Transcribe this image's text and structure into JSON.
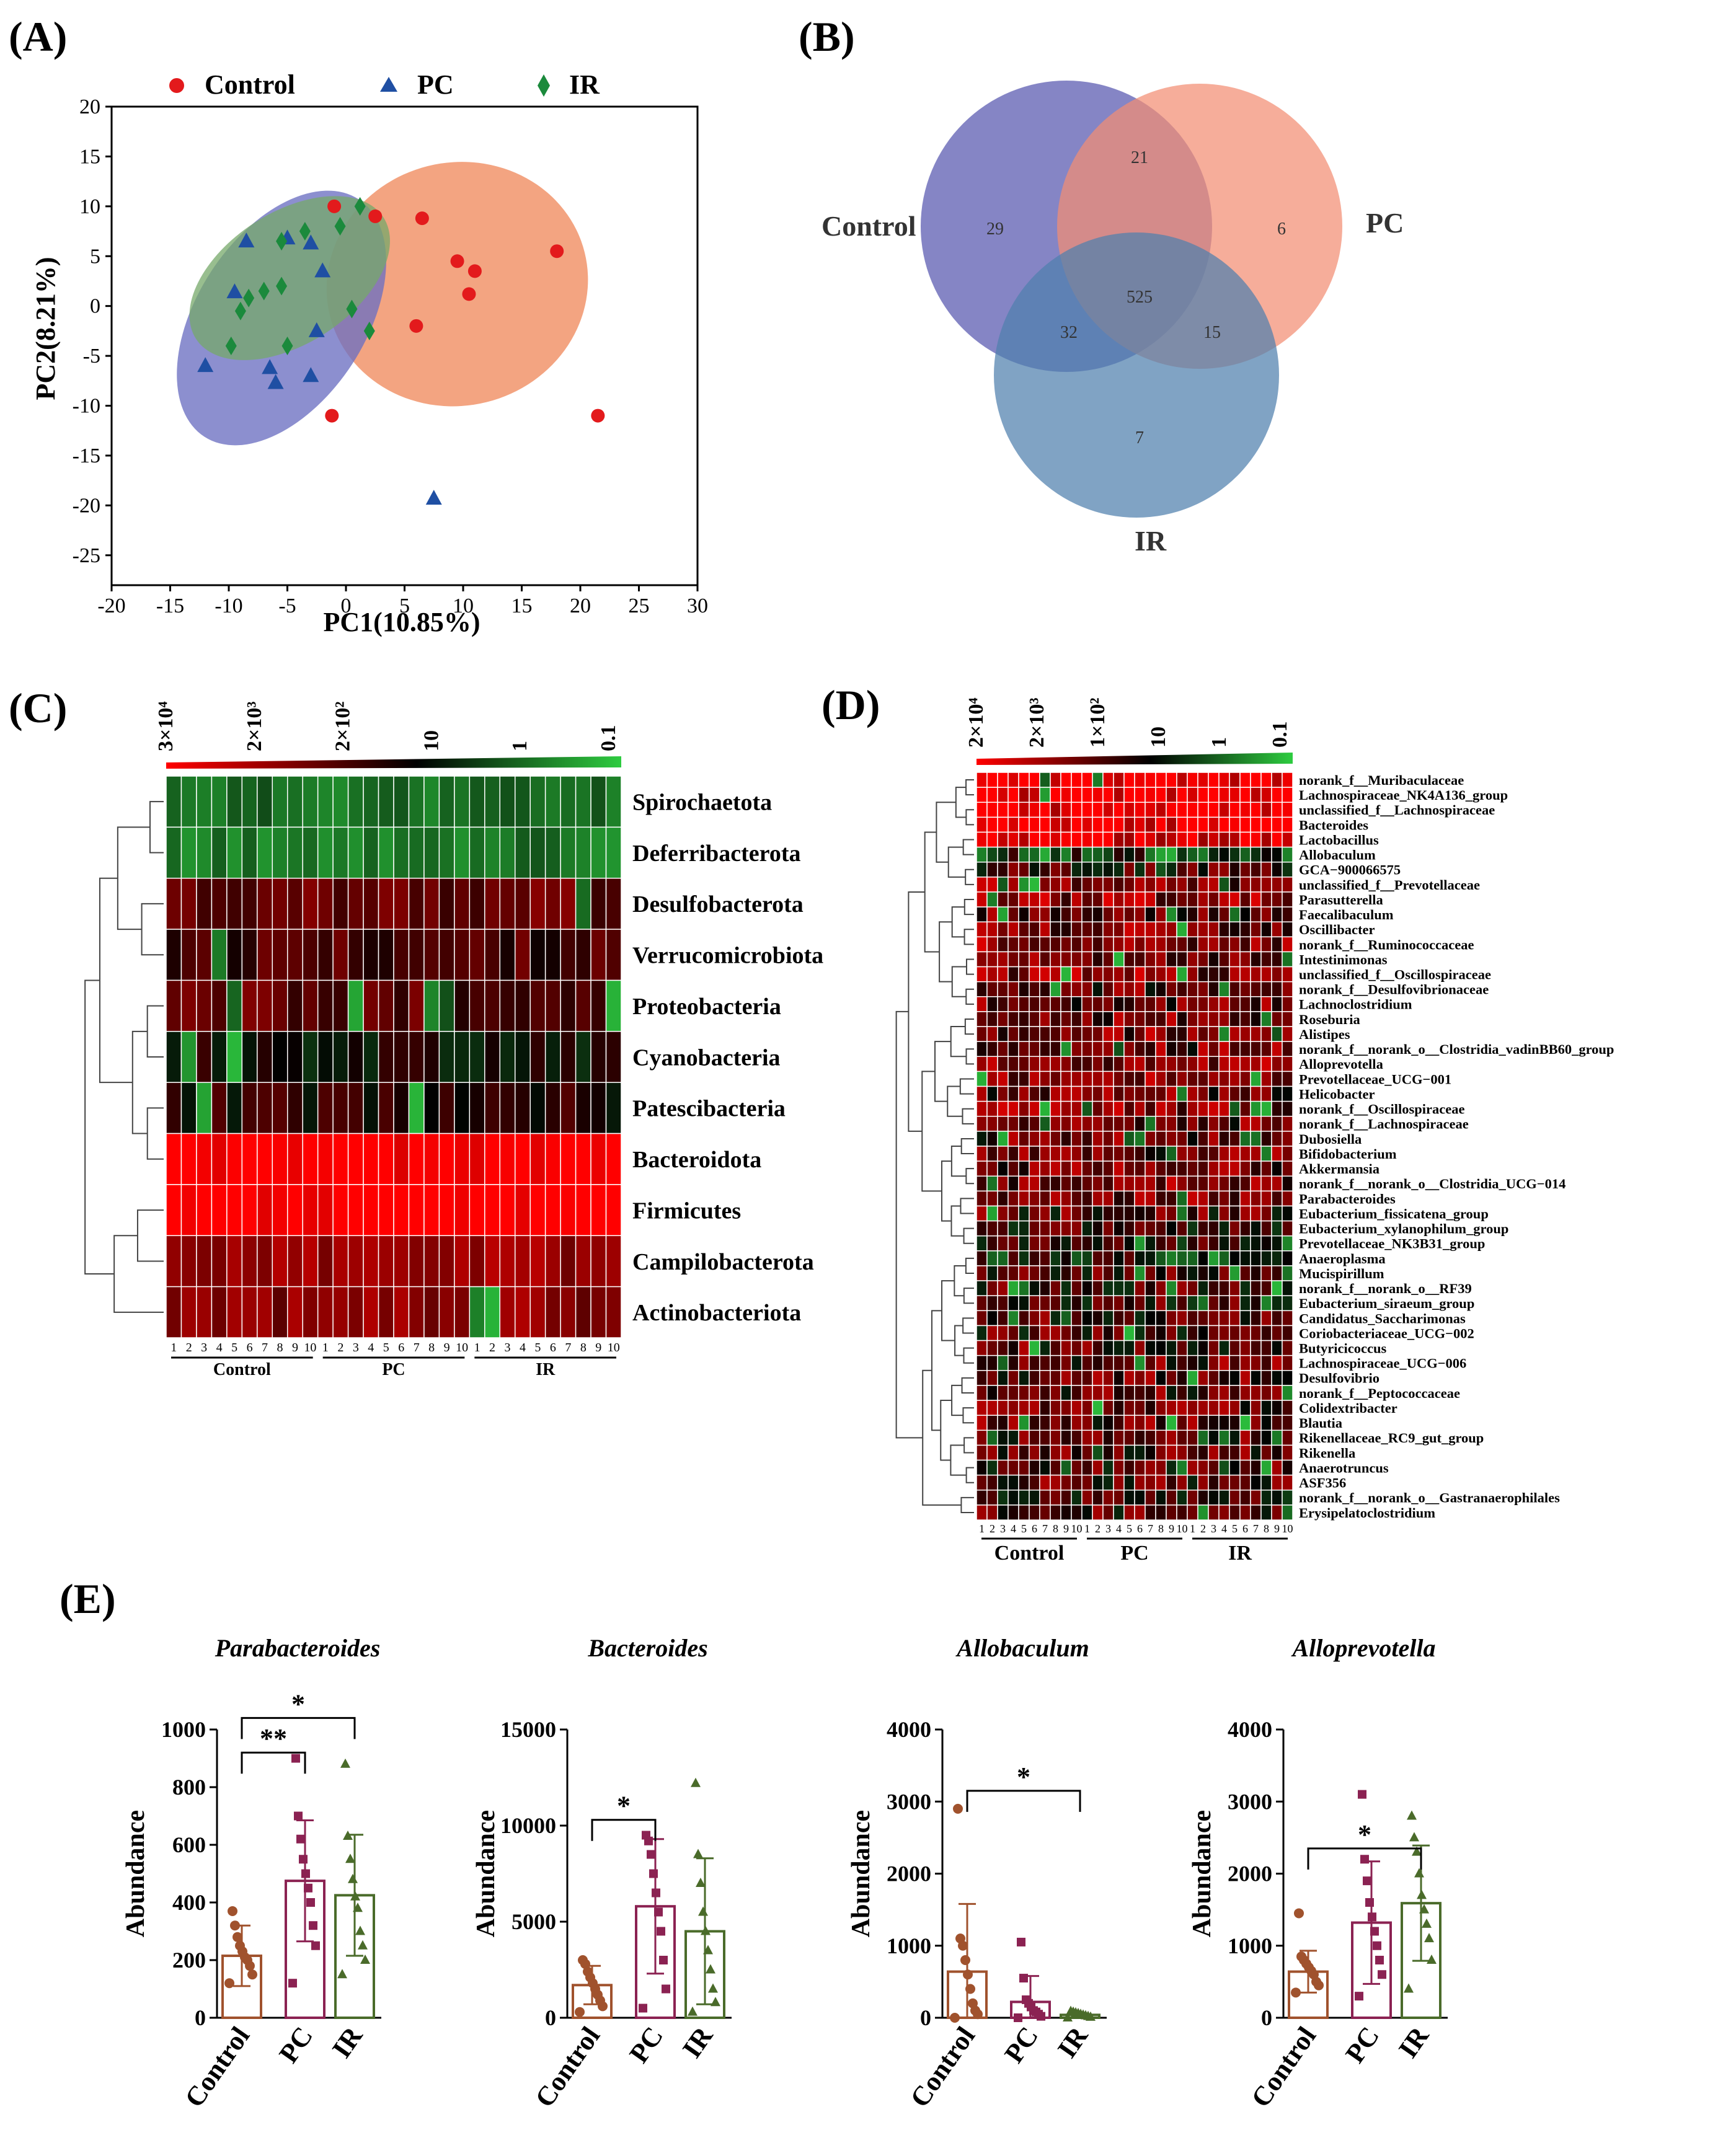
{
  "panels": {
    "A": {
      "label": "(A)"
    },
    "B": {
      "label": "(B)"
    },
    "C": {
      "label": "(C)"
    },
    "D": {
      "label": "(D)"
    },
    "E": {
      "label": "(E)"
    }
  },
  "colors": {
    "control": "#e31a1c",
    "pc": "#1f4fa3",
    "ir": "#1b8a3c",
    "ell_control": "#f08a5d",
    "ell_pc": "#6b6fc2",
    "ell_ir": "#76a86a",
    "venn_control": "#6a6ab8",
    "venn_pc": "#f28e73",
    "venn_ir": "#4f7fad",
    "bar_control": "#a0522d",
    "bar_pc": "#8b2252",
    "bar_ir": "#4a6b2a",
    "heat_high": "#ff0000",
    "heat_mid": "#000000",
    "heat_low": "#2ecc40"
  },
  "chart_data": [
    {
      "panel": "A",
      "type": "scatter",
      "xlabel": "PC1(10.85%)",
      "ylabel": "PC2(8.21%)",
      "xlim": [
        -20,
        30
      ],
      "ylim": [
        -28,
        20
      ],
      "xticks": [
        -20,
        -15,
        -10,
        -5,
        0,
        5,
        10,
        15,
        20,
        25,
        30
      ],
      "yticks": [
        20,
        15,
        10,
        5,
        0,
        -5,
        -10,
        -15,
        -20,
        -25
      ],
      "xtick_labels": [
        "-20",
        "-15",
        "-10",
        "-5",
        "0",
        "5",
        "10",
        "15",
        "20",
        "25",
        "30"
      ],
      "ytick_labels": [
        "20",
        "15",
        "10",
        "5",
        "0",
        "-5",
        "-10",
        "-15",
        "-20",
        "-25"
      ],
      "legend": [
        "Control",
        "PC",
        "IR"
      ],
      "series": [
        {
          "name": "Control",
          "marker": "circle",
          "points": [
            [
              -1,
              10
            ],
            [
              2.5,
              9
            ],
            [
              6.5,
              8.8
            ],
            [
              9.5,
              4.5
            ],
            [
              11,
              3.5
            ],
            [
              18,
              5.5
            ],
            [
              10.5,
              1.2
            ],
            [
              6,
              -2
            ],
            [
              -1.2,
              -11
            ],
            [
              21.5,
              -11
            ]
          ]
        },
        {
          "name": "PC",
          "marker": "triangle",
          "points": [
            [
              -8.5,
              6.5
            ],
            [
              -5,
              6.8
            ],
            [
              -3,
              6.3
            ],
            [
              -9.5,
              1.4
            ],
            [
              -2,
              3.5
            ],
            [
              -12,
              -6
            ],
            [
              -6.5,
              -6.2
            ],
            [
              -6,
              -7.7
            ],
            [
              -3,
              -7
            ],
            [
              -2.5,
              -2.5
            ],
            [
              7.5,
              -19.3
            ]
          ]
        },
        {
          "name": "IR",
          "marker": "diamond",
          "points": [
            [
              1.2,
              10
            ],
            [
              -0.5,
              8
            ],
            [
              -3.5,
              7.5
            ],
            [
              -5.5,
              6.5
            ],
            [
              -7,
              1.5
            ],
            [
              -8.3,
              0.8
            ],
            [
              -5.5,
              2
            ],
            [
              -9,
              -0.5
            ],
            [
              -9.8,
              -4
            ],
            [
              -5,
              -4
            ],
            [
              0.5,
              -0.3
            ],
            [
              2,
              -2.5
            ]
          ]
        }
      ],
      "ellipses": [
        {
          "name": "Control",
          "cx": 9.5,
          "cy": 2.2,
          "rx": 11.2,
          "ry": 12.2,
          "rot": -14
        },
        {
          "name": "PC",
          "cx": -5.5,
          "cy": -1.2,
          "rx": 7.2,
          "ry": 14.2,
          "rot": 33
        },
        {
          "name": "IR",
          "cx": -4.8,
          "cy": 2.8,
          "rx": 5.6,
          "ry": 11.2,
          "rot": 57
        }
      ]
    },
    {
      "panel": "B",
      "type": "venn",
      "sets": [
        "Control",
        "PC",
        "IR"
      ],
      "regions": {
        "control_only": "29",
        "pc_only": "6",
        "ir_only": "7",
        "control_pc": "21",
        "control_ir": "32",
        "pc_ir": "15",
        "all": "525"
      }
    },
    {
      "panel": "C",
      "type": "heatmap",
      "scale_labels": [
        "3×10⁴",
        "2×10³",
        "2×10²",
        "10",
        "1",
        "0.1"
      ],
      "rows": [
        "Spirochaetota",
        "Deferribacterota",
        "Desulfobacterota",
        "Verrucomicrobiota",
        "Proteobacteria",
        "Cyanobacteria",
        "Patescibacteria",
        "Bacteroidota",
        "Firmicutes",
        "Campilobacterota",
        "Actinobacteriota"
      ],
      "row_levels": [
        -0.45,
        -0.5,
        0.3,
        0.2,
        0.25,
        0.0,
        0.1,
        1.0,
        1.0,
        0.5,
        0.45
      ],
      "columns": [
        "1",
        "2",
        "3",
        "4",
        "5",
        "6",
        "7",
        "8",
        "9",
        "10",
        "1",
        "2",
        "3",
        "4",
        "5",
        "6",
        "7",
        "8",
        "9",
        "10",
        "1",
        "2",
        "3",
        "4",
        "5",
        "6",
        "7",
        "8",
        "9",
        "10"
      ],
      "groups": [
        "Control",
        "PC",
        "IR"
      ]
    },
    {
      "panel": "D",
      "type": "heatmap",
      "scale_labels": [
        "2×10⁴",
        "2×10³",
        "1×10²",
        "10",
        "1",
        "0.1"
      ],
      "rows": [
        "norank_f__Muribaculaceae",
        "Lachnospiraceae_NK4A136_group",
        "unclassified_f__Lachnospiraceae",
        "Bacteroides",
        "Lactobacillus",
        "Allobaculum",
        "GCA−900066575",
        "unclassified_f__Prevotellaceae",
        "Parasutterella",
        "Faecalibaculum",
        "Oscillibacter",
        "norank_f__Ruminococcaceae",
        "Intestinimonas",
        "unclassified_f__Oscillospiraceae",
        "norank_f__Desulfovibrionaceae",
        "Lachnoclostridium",
        "Roseburia",
        "Alistipes",
        "norank_f__norank_o__Clostridia_vadinBB60_group",
        "Alloprevotella",
        "Prevotellaceae_UCG−001",
        "Helicobacter",
        "norank_f__Oscillospiraceae",
        "norank_f__Lachnospiraceae",
        "Dubosiella",
        "Bifidobacterium",
        "Akkermansia",
        "norank_f__norank_o__Clostridia_UCG−014",
        "Parabacteroides",
        "Eubacterium_fissicatena_group",
        "Eubacterium_xylanophilum_group",
        "Prevotellaceae_NK3B31_group",
        "Anaeroplasma",
        "Mucispirillum",
        "norank_f__norank_o__RF39",
        "Eubacterium_siraeum_group",
        "Candidatus_Saccharimonas",
        "Coriobacteriaceae_UCG−002",
        "Butyricicoccus",
        "Lachnospiraceae_UCG−006",
        "Desulfovibrio",
        "norank_f__Peptococcaceae",
        "Colidextribacter",
        "Blautia",
        "Rikenellaceae_RC9_gut_group",
        "Rikenella",
        "Anaerotruncus",
        "ASF356",
        "norank_f__norank_o__Gastranaerophilales",
        "Erysipelatoclostridium"
      ],
      "row_levels": [
        1.0,
        0.95,
        0.95,
        0.95,
        0.9,
        -0.2,
        0.15,
        0.4,
        0.5,
        0.3,
        0.4,
        0.45,
        0.35,
        0.45,
        0.3,
        0.35,
        0.35,
        0.4,
        0.35,
        0.45,
        0.4,
        0.35,
        0.45,
        0.35,
        0.3,
        0.3,
        0.35,
        0.4,
        0.4,
        0.25,
        0.1,
        0.1,
        -0.05,
        0.25,
        0.2,
        0.15,
        0.2,
        0.2,
        0.25,
        0.3,
        0.3,
        0.25,
        0.3,
        0.3,
        0.3,
        0.25,
        0.2,
        0.25,
        0.1,
        0.25
      ],
      "columns": [
        "1",
        "2",
        "3",
        "4",
        "5",
        "6",
        "7",
        "8",
        "9",
        "10",
        "1",
        "2",
        "3",
        "4",
        "5",
        "6",
        "7",
        "8",
        "9",
        "10",
        "1",
        "2",
        "3",
        "4",
        "5",
        "6",
        "7",
        "8",
        "9",
        "10"
      ],
      "groups": [
        "Control",
        "PC",
        "IR"
      ]
    },
    {
      "panel": "E1",
      "type": "bar",
      "title": "Parabacteroides",
      "ylabel": "Abundance",
      "categories": [
        "Control",
        "PC",
        "IR"
      ],
      "values": [
        215,
        475,
        425
      ],
      "errors": [
        105,
        210,
        210
      ],
      "ylim": [
        0,
        1000
      ],
      "yticks": [
        0,
        200,
        400,
        600,
        800,
        1000
      ],
      "ytick_labels": [
        "0",
        "200",
        "400",
        "600",
        "800",
        "1000"
      ],
      "points": [
        [
          120,
          150,
          180,
          200,
          210,
          230,
          250,
          280,
          320,
          370
        ],
        [
          120,
          250,
          320,
          400,
          450,
          500,
          550,
          620,
          700,
          900
        ],
        [
          150,
          200,
          250,
          300,
          380,
          420,
          480,
          550,
          630,
          880
        ]
      ],
      "significance": [
        {
          "from": 0,
          "to": 1,
          "label": "**",
          "y": 920
        },
        {
          "from": 0,
          "to": 2,
          "label": "*",
          "y": 1040
        }
      ]
    },
    {
      "panel": "E2",
      "type": "bar",
      "title": "Bacteroides",
      "ylabel": "Abundance",
      "categories": [
        "Control",
        "PC",
        "IR"
      ],
      "values": [
        1700,
        5800,
        4500
      ],
      "errors": [
        1000,
        3500,
        3800
      ],
      "ylim": [
        0,
        15000
      ],
      "yticks": [
        0,
        5000,
        10000,
        15000
      ],
      "ytick_labels": [
        "0",
        "5000",
        "10000",
        "15000"
      ],
      "points": [
        [
          300,
          600,
          900,
          1200,
          1500,
          1800,
          2100,
          2400,
          2800,
          3000
        ],
        [
          500,
          1500,
          3000,
          4500,
          5500,
          6500,
          7500,
          8500,
          9200,
          9500
        ],
        [
          300,
          800,
          1500,
          2500,
          3500,
          4500,
          5500,
          7000,
          8500,
          12200
        ]
      ],
      "significance": [
        {
          "from": 0,
          "to": 1,
          "label": "*",
          "y": 10300
        }
      ]
    },
    {
      "panel": "E3",
      "type": "bar",
      "title": "Allobaculum",
      "ylabel": "Abundance",
      "categories": [
        "Control",
        "PC",
        "IR"
      ],
      "values": [
        640,
        220,
        40
      ],
      "errors": [
        940,
        360,
        20
      ],
      "ylim": [
        0,
        4000
      ],
      "yticks": [
        0,
        1000,
        2000,
        3000,
        4000
      ],
      "ytick_labels": [
        "0",
        "1000",
        "2000",
        "3000",
        "4000"
      ],
      "points": [
        [
          0,
          50,
          100,
          200,
          400,
          600,
          800,
          1000,
          1100,
          2900
        ],
        [
          0,
          20,
          50,
          80,
          100,
          150,
          200,
          250,
          550,
          1050
        ],
        [
          0,
          10,
          20,
          30,
          40,
          50,
          60,
          70,
          80,
          90
        ]
      ],
      "significance": [
        {
          "from": 0,
          "to": 2,
          "label": "*",
          "y": 3150
        }
      ]
    },
    {
      "panel": "E4",
      "type": "bar",
      "title": "Alloprevotella",
      "ylabel": "Abundance",
      "categories": [
        "Control",
        "PC",
        "IR"
      ],
      "values": [
        640,
        1320,
        1590
      ],
      "errors": [
        290,
        850,
        800
      ],
      "ylim": [
        0,
        4000
      ],
      "yticks": [
        0,
        1000,
        2000,
        3000,
        4000
      ],
      "ytick_labels": [
        "0",
        "1000",
        "2000",
        "3000",
        "4000"
      ],
      "points": [
        [
          350,
          450,
          500,
          600,
          650,
          700,
          750,
          800,
          850,
          1450
        ],
        [
          300,
          600,
          800,
          1000,
          1200,
          1400,
          1600,
          1900,
          2200,
          3100
        ],
        [
          400,
          800,
          1100,
          1300,
          1500,
          1700,
          2000,
          2300,
          2500,
          2800
        ]
      ],
      "significance": [
        {
          "from": 0,
          "to": 2,
          "label": "*",
          "y": 2350
        }
      ]
    }
  ]
}
